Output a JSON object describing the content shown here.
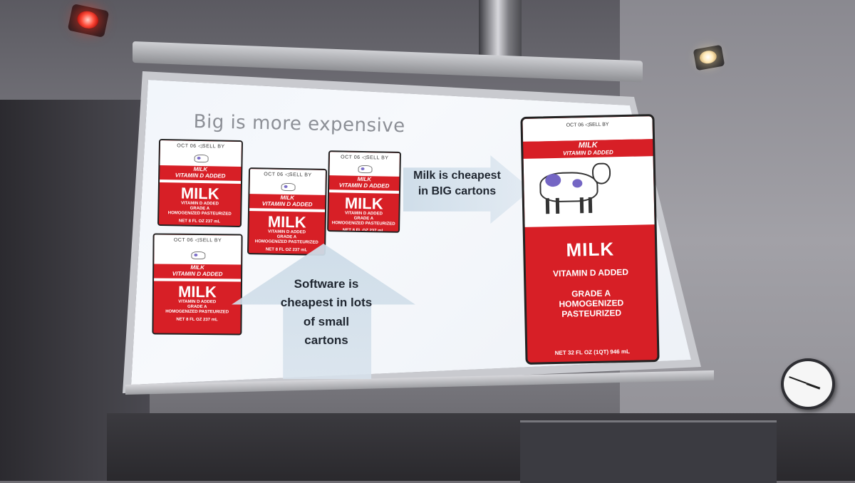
{
  "slide": {
    "title": "Big is more expensive",
    "arrow_right_text": "Milk is cheapest in BIG cartons",
    "arrow_up_text": "Software is cheapest in lots of small cartons"
  },
  "small_carton": {
    "date": "OCT 06",
    "sell_by": "SELL BY",
    "label_top": "MILK",
    "label_top_sub": "VITAMIN D ADDED",
    "big_label": "MILK",
    "line1": "VITAMIN D ADDED",
    "line2": "GRADE A",
    "line3": "HOMOGENIZED PASTEURIZED",
    "net": "NET 8 FL OZ   237 mL"
  },
  "big_carton": {
    "date": "OCT 06",
    "sell_by": "SELL BY",
    "label_top": "MILK",
    "label_top_sub": "VITAMIN D ADDED",
    "big_label": "MILK",
    "vitamin": "VITAMIN D ADDED",
    "grade": "GRADE A",
    "homogenized": "HOMOGENIZED",
    "pasteurized": "PASTEURIZED",
    "net": "NET 32 FL OZ (1QT) 946 mL"
  },
  "colors": {
    "carton_red": "#d71f26",
    "arrow_fill": "#cddce8",
    "title_gray": "#8c8f96"
  }
}
